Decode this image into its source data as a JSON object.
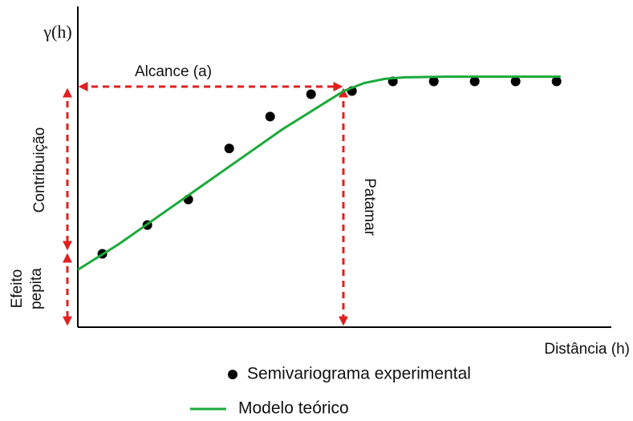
{
  "chart_data": {
    "type": "scatter",
    "y_label": "γ(h)",
    "x_label": "Distância (h)",
    "annotations": {
      "range": "Alcance (a)",
      "contribution": "Contribuição",
      "nugget_line1": "Efeito",
      "nugget_line2": "pepita",
      "sill": "Patamar"
    },
    "xlim": [
      0,
      13
    ],
    "ylim": [
      0,
      1
    ],
    "series": [
      {
        "name": "Semivariograma experimental",
        "type": "scatter",
        "color": "#000000",
        "x": [
          0.6,
          1.7,
          2.7,
          3.7,
          4.7,
          5.7,
          6.7,
          7.7,
          8.7,
          9.7,
          10.7,
          11.7
        ],
        "values": [
          0.23,
          0.32,
          0.4,
          0.56,
          0.66,
          0.73,
          0.74,
          0.77,
          0.77,
          0.77,
          0.77,
          0.77
        ]
      },
      {
        "name": "Modelo teórico",
        "type": "line",
        "color": "#1aaa3a",
        "x": [
          0,
          1,
          2,
          3,
          4,
          5,
          6,
          6.5,
          7,
          7.5,
          8,
          9,
          11.8
        ],
        "values": [
          0.18,
          0.26,
          0.35,
          0.44,
          0.53,
          0.62,
          0.7,
          0.74,
          0.765,
          0.778,
          0.783,
          0.785,
          0.785
        ]
      }
    ]
  }
}
